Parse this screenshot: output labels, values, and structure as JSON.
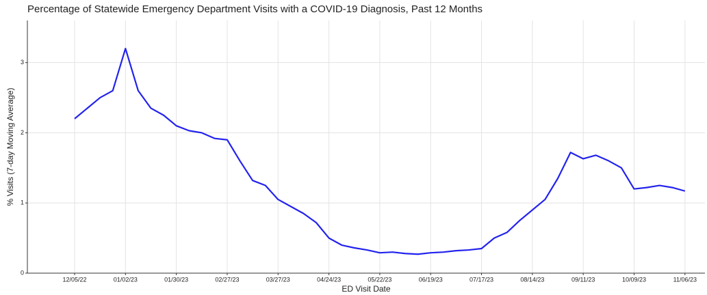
{
  "chart_data": {
    "type": "line",
    "title": "Percentage of Statewide Emergency Department Visits with a COVID-19 Diagnosis, Past 12 Months",
    "xlabel": "ED Visit Date",
    "ylabel": "% Visits (7-day Moving Average)",
    "x": [
      "12/05/22",
      "12/12/22",
      "12/19/22",
      "12/26/22",
      "01/02/23",
      "01/09/23",
      "01/16/23",
      "01/23/23",
      "01/30/23",
      "02/06/23",
      "02/13/23",
      "02/20/23",
      "02/27/23",
      "03/06/23",
      "03/13/23",
      "03/20/23",
      "03/27/23",
      "04/03/23",
      "04/10/23",
      "04/17/23",
      "04/24/23",
      "05/01/23",
      "05/08/23",
      "05/15/23",
      "05/22/23",
      "05/29/23",
      "06/05/23",
      "06/12/23",
      "06/19/23",
      "06/26/23",
      "07/03/23",
      "07/10/23",
      "07/17/23",
      "07/24/23",
      "07/31/23",
      "08/07/23",
      "08/14/23",
      "08/21/23",
      "08/28/23",
      "09/04/23",
      "09/11/23",
      "09/18/23",
      "09/25/23",
      "10/02/23",
      "10/09/23",
      "10/16/23",
      "10/23/23",
      "10/30/23",
      "11/06/23"
    ],
    "series": [
      {
        "name": "% Visits",
        "color": "#2222ee",
        "values": [
          2.2,
          2.35,
          2.5,
          2.6,
          3.2,
          2.6,
          2.35,
          2.25,
          2.1,
          2.03,
          2.0,
          1.92,
          1.9,
          1.6,
          1.32,
          1.25,
          1.05,
          0.95,
          0.85,
          0.72,
          0.5,
          0.4,
          0.36,
          0.33,
          0.29,
          0.3,
          0.28,
          0.27,
          0.29,
          0.3,
          0.32,
          0.33,
          0.35,
          0.5,
          0.58,
          0.75,
          0.9,
          1.05,
          1.35,
          1.72,
          1.63,
          1.68,
          1.6,
          1.5,
          1.2,
          1.22,
          1.25,
          1.22,
          1.17
        ]
      }
    ],
    "xlim": [
      "11/09/22",
      "11/17/23"
    ],
    "xticks": [
      "12/05/22",
      "01/02/23",
      "01/30/23",
      "02/27/23",
      "03/27/23",
      "04/24/23",
      "05/22/23",
      "06/19/23",
      "07/17/23",
      "08/14/23",
      "09/11/23",
      "10/09/23",
      "11/06/23"
    ],
    "ylim": [
      0,
      3.6
    ],
    "yticks": [
      0,
      1,
      2,
      3
    ],
    "grid": true
  }
}
